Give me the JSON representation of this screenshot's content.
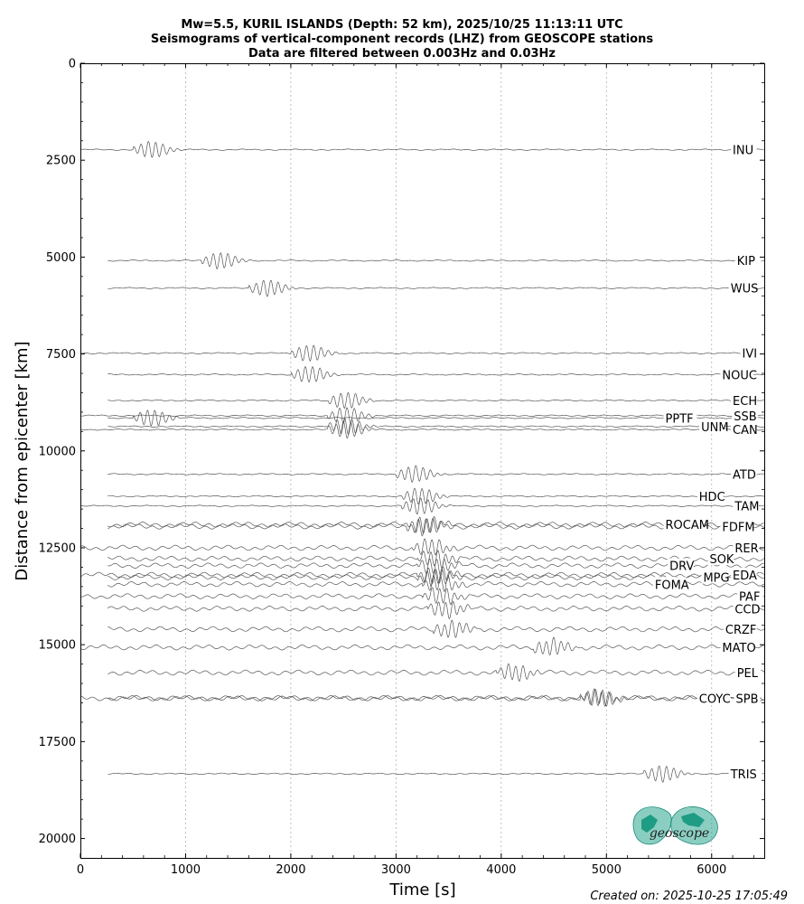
{
  "chart_data": {
    "type": "line",
    "title_lines": [
      "Mw=5.5, KURIL ISLANDS (Depth: 52 km), 2025/10/25 11:13:11 UTC",
      "Seismograms of vertical-component records (LHZ) from GEOSCOPE stations",
      "Data are filtered between 0.003Hz and 0.03Hz"
    ],
    "xlabel": "Time [s]",
    "ylabel": "Distance from epicenter [km]",
    "xlim": [
      0,
      6500
    ],
    "ylim": [
      20500,
      0
    ],
    "y_inverted": true,
    "x_ticks": [
      "0",
      "1000",
      "2000",
      "3000",
      "4000",
      "5000",
      "6000"
    ],
    "y_ticks": [
      "0",
      "2500",
      "5000",
      "7500",
      "10000",
      "12500",
      "15000",
      "17500",
      "20000"
    ],
    "x_grid": [
      1000,
      2000,
      3000,
      4000,
      5000,
      6000
    ],
    "grid": "vertical dotted",
    "trace_color": "#555555",
    "stations": [
      {
        "name": "INU",
        "distance": 2230,
        "arrival": 500,
        "label_x": 6200
      },
      {
        "name": "KIP",
        "distance": 5090,
        "arrival": 1150,
        "label_x": 6240
      },
      {
        "name": "WUS",
        "distance": 5800,
        "arrival": 1600,
        "label_x": 6180
      },
      {
        "name": "IVI",
        "distance": 7480,
        "arrival": 2000,
        "label_x": 6290
      },
      {
        "name": "NOUC",
        "distance": 8030,
        "arrival": 2000,
        "label_x": 6100
      },
      {
        "name": "ECH",
        "distance": 8700,
        "arrival": 2350,
        "label_x": 6200
      },
      {
        "name": "SSB",
        "distance": 9090,
        "arrival": 2350,
        "label_x": 6210
      },
      {
        "name": "PPTF",
        "distance": 9150,
        "arrival": 500,
        "label_x": 5560
      },
      {
        "name": "UNM",
        "distance": 9370,
        "arrival": 2350,
        "label_x": 5900
      },
      {
        "name": "CAN",
        "distance": 9450,
        "arrival": 2350,
        "label_x": 6200
      },
      {
        "name": "ATD",
        "distance": 10600,
        "arrival": 3000,
        "label_x": 6200
      },
      {
        "name": "HDC",
        "distance": 11170,
        "arrival": 3050,
        "label_x": 5880
      },
      {
        "name": "TAM",
        "distance": 11420,
        "arrival": 3050,
        "label_x": 6220
      },
      {
        "name": "ROCAM",
        "distance": 11900,
        "arrival": 3100,
        "label_x": 5560
      },
      {
        "name": "FDFM",
        "distance": 11950,
        "arrival": 3100,
        "label_x": 6100
      },
      {
        "name": "RER",
        "distance": 12500,
        "arrival": 3150,
        "label_x": 6220
      },
      {
        "name": "SOK",
        "distance": 12780,
        "arrival": 3200,
        "label_x": 5980
      },
      {
        "name": "DRV",
        "distance": 12960,
        "arrival": 3200,
        "label_x": 5600
      },
      {
        "name": "EDA",
        "distance": 13200,
        "arrival": 3200,
        "label_x": 6200
      },
      {
        "name": "MPG",
        "distance": 13260,
        "arrival": 3200,
        "label_x": 5920
      },
      {
        "name": "FOMA",
        "distance": 13440,
        "arrival": 3250,
        "label_x": 5460
      },
      {
        "name": "PAF",
        "distance": 13750,
        "arrival": 3250,
        "label_x": 6260
      },
      {
        "name": "CCD",
        "distance": 14070,
        "arrival": 3300,
        "label_x": 6220
      },
      {
        "name": "CRZF",
        "distance": 14600,
        "arrival": 3350,
        "label_x": 6130
      },
      {
        "name": "MATO",
        "distance": 15070,
        "arrival": 4300,
        "label_x": 6100
      },
      {
        "name": "PEL",
        "distance": 15720,
        "arrival": 3950,
        "label_x": 6240
      },
      {
        "name": "COYC",
        "distance": 16380,
        "arrival": 4750,
        "label_x": 5880
      },
      {
        "name": "SPB",
        "distance": 16380,
        "arrival": 4750,
        "label_x": 6230
      },
      {
        "name": "TRIS",
        "distance": 18330,
        "arrival": 5350,
        "label_x": 6180
      }
    ]
  },
  "logo": {
    "text": "geoscope",
    "color": "#2aa58f"
  },
  "footer": {
    "created": "Created on: 2025-10-25 17:05:49"
  }
}
